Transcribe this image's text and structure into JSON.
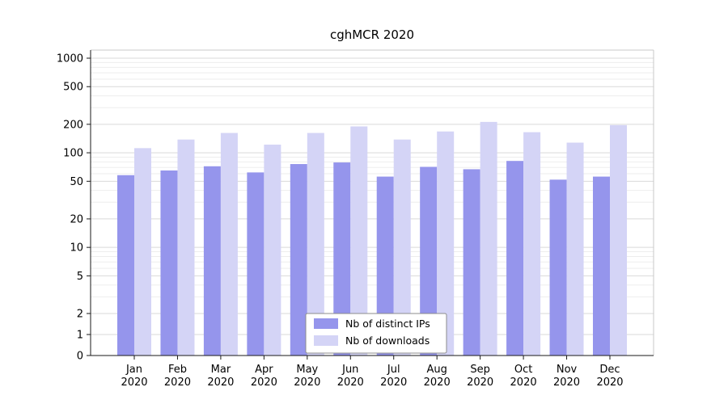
{
  "figure": {
    "title": "cghMCR 2020"
  },
  "colors": {
    "grid_major": "#d9d9d9",
    "grid_minor": "#ededed",
    "axis_dark": "#1a1a1a",
    "axis_light": "#c8c8c8",
    "legend_border": "#8c8c8c",
    "background": "#ffffff"
  },
  "chart_data": {
    "type": "bar",
    "title": "cghMCR 2020",
    "categories": [
      "Jan 2020",
      "Feb 2020",
      "Mar 2020",
      "Apr 2020",
      "May 2020",
      "Jun 2020",
      "Jul 2020",
      "Aug 2020",
      "Sep 2020",
      "Oct 2020",
      "Nov 2020",
      "Dec 2020"
    ],
    "series": [
      {
        "name": "Nb of distinct IPs",
        "color": "#9595ec",
        "values": [
          58,
          65,
          72,
          62,
          76,
          79,
          56,
          71,
          67,
          82,
          52,
          56
        ]
      },
      {
        "name": "Nb of downloads",
        "color": "#d4d4f6",
        "values": [
          112,
          138,
          162,
          122,
          162,
          190,
          138,
          168,
          212,
          165,
          128,
          196
        ]
      }
    ],
    "yscale": "log",
    "yticks": [
      0,
      1,
      2,
      5,
      10,
      20,
      50,
      100,
      200,
      500,
      1000
    ],
    "ylim": [
      0,
      1200
    ],
    "grid": true,
    "legend_position": "bottom-center",
    "xlabel": "",
    "ylabel": ""
  }
}
